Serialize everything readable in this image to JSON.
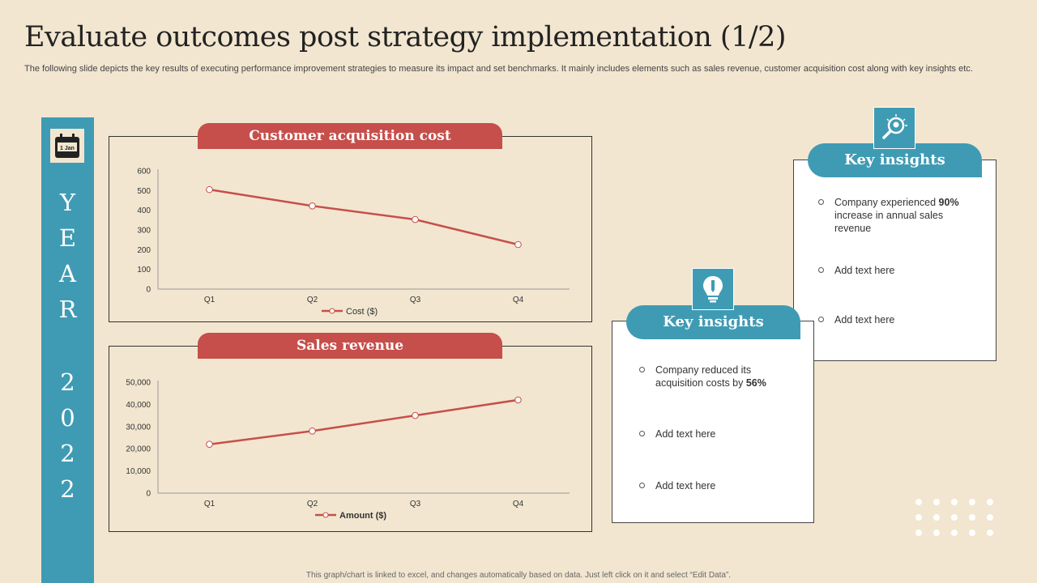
{
  "page": {
    "title": "Evaluate outcomes post strategy implementation (1/2)",
    "subtitle": "The following slide depicts the key results of executing performance improvement strategies to measure its impact and set benchmarks. It mainly includes elements such as sales revenue, customer acquisition cost along with key insights etc.",
    "footnote": "This graph/chart is linked to excel, and changes automatically based on data. Just left click on it and select “Edit Data”."
  },
  "year_bar": {
    "letters": [
      "Y",
      "E",
      "A",
      "R",
      "2",
      "0",
      "2",
      "2"
    ],
    "calendar_label": "1 Jan",
    "icon": "calendar-icon"
  },
  "colors": {
    "accent_red": "#c64f4b",
    "accent_teal": "#3f9bb4",
    "background": "#f2e6d0"
  },
  "chart_data": [
    {
      "type": "line",
      "title": "Customer acquisition cost",
      "categories": [
        "Q1",
        "Q2",
        "Q3",
        "Q4"
      ],
      "series": [
        {
          "name": "Cost ($)",
          "values": [
            505,
            422,
            353,
            226
          ]
        }
      ],
      "ylim": [
        0,
        600
      ],
      "yticks": [
        0,
        100,
        200,
        300,
        400,
        500,
        600
      ],
      "ytick_labels": [
        "0",
        "100",
        "200",
        "300",
        "400",
        "500",
        "600"
      ],
      "grid": false,
      "legend": "bottom"
    },
    {
      "type": "line",
      "title": "Sales revenue",
      "categories": [
        "Q1",
        "Q2",
        "Q3",
        "Q4"
      ],
      "series": [
        {
          "name": "Amount ($)",
          "values": [
            22000,
            28000,
            35000,
            42000
          ]
        }
      ],
      "ylim": [
        0,
        50000
      ],
      "yticks": [
        0,
        10000,
        20000,
        30000,
        40000,
        50000
      ],
      "ytick_labels": [
        "0",
        "10,000",
        "20,000",
        "30,000",
        "40,000",
        "50,000"
      ],
      "grid": false,
      "legend": "bottom"
    }
  ],
  "insights": [
    {
      "title": "Key insights",
      "icon": "magnifier-bulb-icon",
      "items": [
        {
          "pre": "Company experienced ",
          "bold": "90%",
          "post": " increase in annual sales revenue"
        },
        {
          "pre": "Add text here",
          "bold": "",
          "post": ""
        },
        {
          "pre": "Add text here",
          "bold": "",
          "post": ""
        }
      ]
    },
    {
      "title": "Key insights",
      "icon": "pen-bulb-icon",
      "items": [
        {
          "pre": "Company reduced its acquisition costs by ",
          "bold": "56%",
          "post": ""
        },
        {
          "pre": "Add text here",
          "bold": "",
          "post": ""
        },
        {
          "pre": "Add text here",
          "bold": "",
          "post": ""
        }
      ]
    }
  ]
}
